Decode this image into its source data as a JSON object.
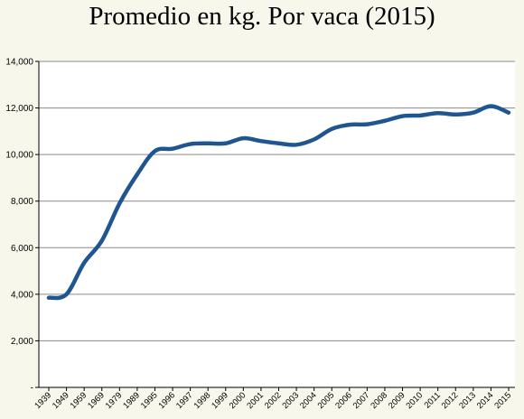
{
  "chart_data": {
    "type": "line",
    "title": "Promedio en kg. Por vaca (2015)",
    "xlabel": "",
    "ylabel": "",
    "categories": [
      "1939",
      "1949",
      "1959",
      "1969",
      "1979",
      "1989",
      "1995",
      "1996",
      "1997",
      "1998",
      "1999",
      "2000",
      "2001",
      "2002",
      "2003",
      "2004",
      "2005",
      "2006",
      "2007",
      "2008",
      "2009",
      "2010",
      "2011",
      "2012",
      "2013",
      "2014",
      "2015"
    ],
    "series": [
      {
        "values": [
          3850,
          4000,
          5350,
          6300,
          7900,
          9150,
          10150,
          10250,
          10450,
          10480,
          10480,
          10700,
          10580,
          10480,
          10420,
          10650,
          11100,
          11280,
          11300,
          11450,
          11650,
          11680,
          11780,
          11720,
          11800,
          12080,
          11800
        ]
      }
    ],
    "y_ticks": [
      0,
      2000,
      4000,
      6000,
      8000,
      10000,
      12000,
      14000
    ],
    "y_tick_labels": [
      "-",
      "2,000",
      "4,000",
      "6,000",
      "8,000",
      "10,000",
      "12,000",
      "14,000"
    ],
    "ylim": [
      0,
      14000
    ],
    "grid": "horizontal",
    "legend": "none",
    "colors": {
      "line": "#1f5690",
      "grid": "#8a8a8a",
      "background": "#f7f7ec",
      "plot_background": "#ffffff",
      "axis": "#000000"
    }
  }
}
